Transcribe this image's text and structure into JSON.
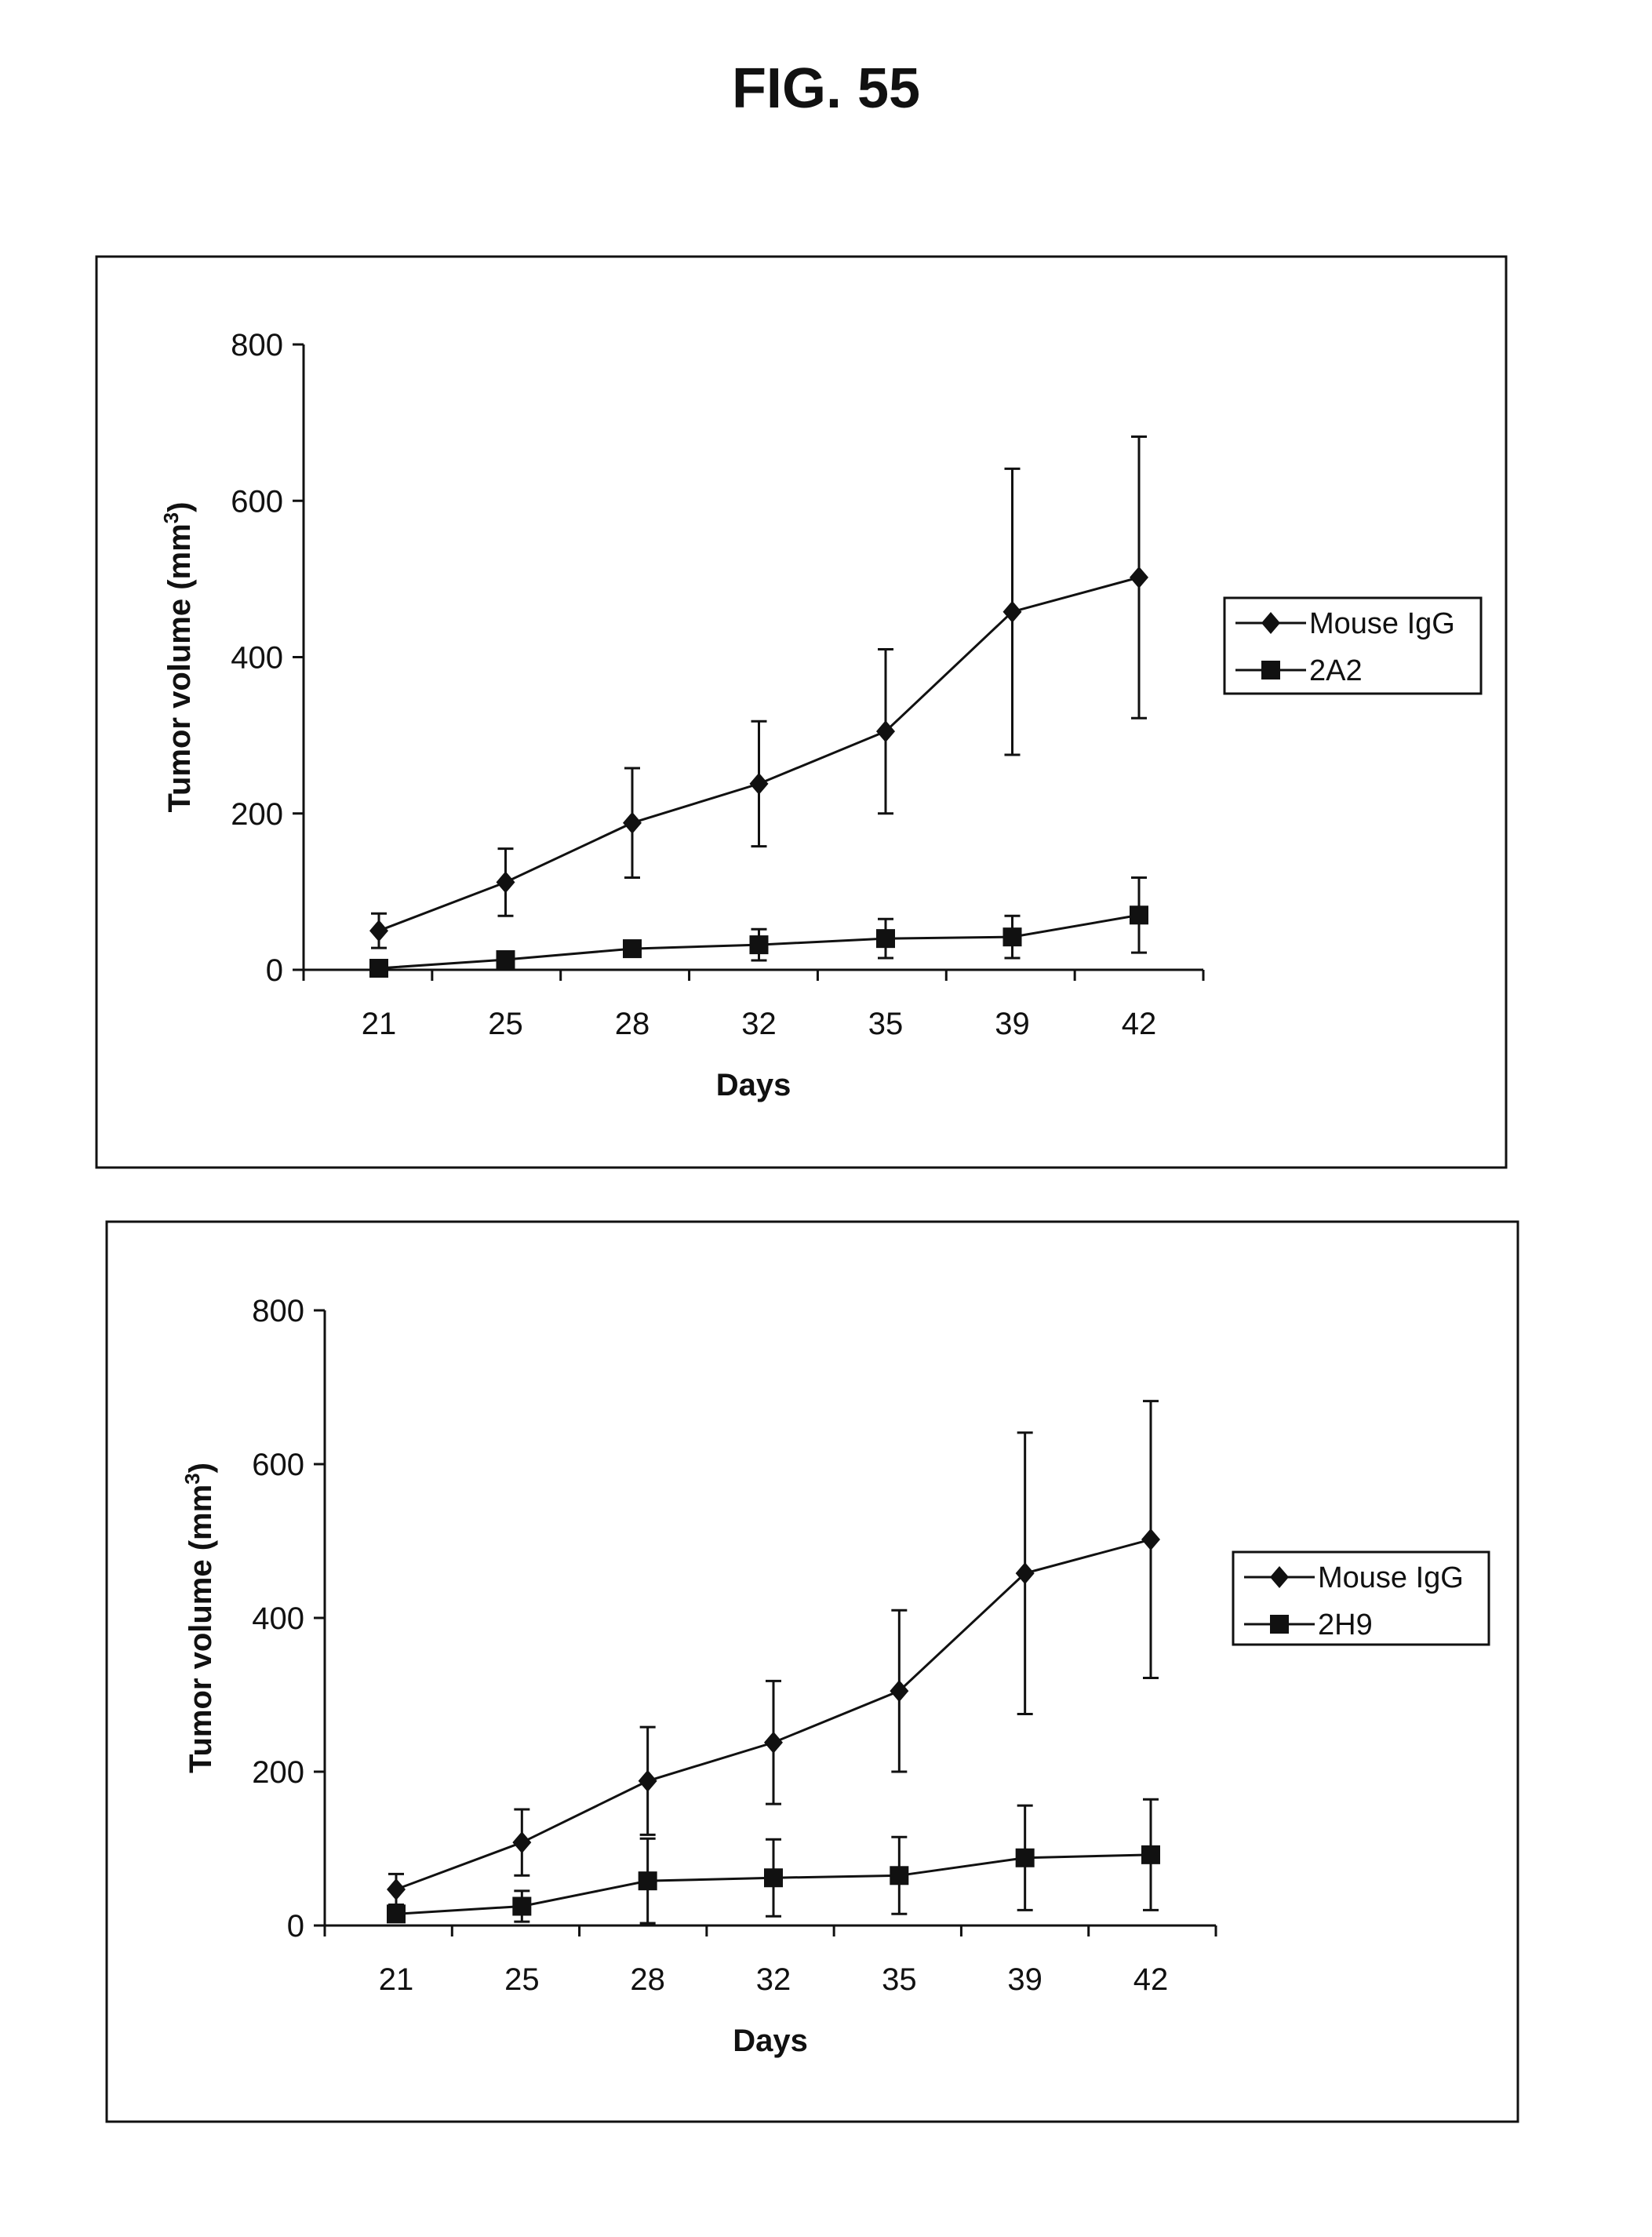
{
  "figure_title": "FIG. 55",
  "chart_data": [
    {
      "type": "line",
      "xlabel": "Days",
      "ylabel": "Tumor volume (mm",
      "ylabel_sup": "3",
      "ylabel_close": ")",
      "categories": [
        "21",
        "25",
        "28",
        "32",
        "35",
        "39",
        "42"
      ],
      "ylim": [
        0,
        800
      ],
      "yticks": [
        0,
        200,
        400,
        600,
        800
      ],
      "grid": false,
      "legend_placement": "right",
      "series": [
        {
          "name": "Mouse IgG",
          "marker": "diamond",
          "color": "#111111",
          "values": [
            50,
            112,
            188,
            238,
            305,
            458,
            502
          ],
          "errors": [
            22,
            43,
            70,
            80,
            105,
            183,
            180
          ]
        },
        {
          "name": "2A2",
          "marker": "square",
          "color": "#111111",
          "values": [
            2,
            13,
            27,
            32,
            40,
            42,
            70
          ],
          "errors": [
            2,
            5,
            10,
            20,
            25,
            27,
            48
          ]
        }
      ]
    },
    {
      "type": "line",
      "xlabel": "Days",
      "ylabel": "Tumor volume (mm",
      "ylabel_sup": "3",
      "ylabel_close": ")",
      "categories": [
        "21",
        "25",
        "28",
        "32",
        "35",
        "39",
        "42"
      ],
      "ylim": [
        0,
        800
      ],
      "yticks": [
        0,
        200,
        400,
        600,
        800
      ],
      "grid": false,
      "legend_placement": "right",
      "series": [
        {
          "name": "Mouse IgG",
          "marker": "diamond",
          "color": "#111111",
          "values": [
            47,
            108,
            188,
            238,
            305,
            458,
            502
          ],
          "errors": [
            20,
            43,
            70,
            80,
            105,
            183,
            180
          ]
        },
        {
          "name": "2H9",
          "marker": "square",
          "color": "#111111",
          "values": [
            15,
            25,
            58,
            62,
            65,
            88,
            92
          ],
          "errors": [
            5,
            20,
            55,
            50,
            50,
            68,
            72
          ]
        }
      ]
    }
  ]
}
